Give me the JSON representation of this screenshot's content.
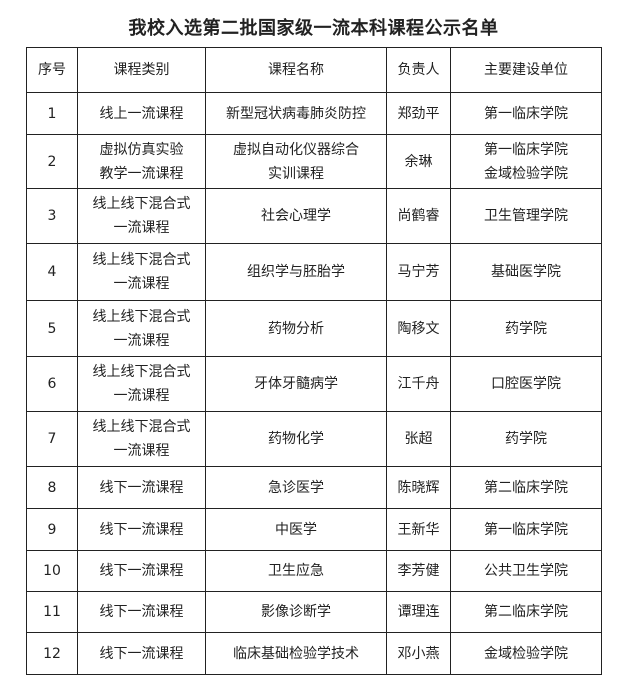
{
  "title": "我校入选第二批国家级一流本科课程公示名单",
  "headers": [
    "序号",
    "课程类别",
    "课程名称",
    "负责人",
    "主要建设单位"
  ],
  "rows": [
    [
      "1",
      "线上一流课程",
      "新型冠状病毒肺炎防控",
      "郑劲平",
      "第一临床学院"
    ],
    [
      "2",
      "虚拟仿真实验\n教学一流课程",
      "虚拟自动化仪器综合\n实训课程",
      "余琳",
      "第一临床学院\n金域检验学院"
    ],
    [
      "3",
      "线上线下混合式\n一流课程",
      "社会心理学",
      "尚鹤睿",
      "卫生管理学院"
    ],
    [
      "4",
      "线上线下混合式\n一流课程",
      "组织学与胚胎学",
      "马宁芳",
      "基础医学院"
    ],
    [
      "5",
      "线上线下混合式\n一流课程",
      "药物分析",
      "陶移文",
      "药学院"
    ],
    [
      "6",
      "线上线下混合式\n一流课程",
      "牙体牙髓病学",
      "江千舟",
      "口腔医学院"
    ],
    [
      "7",
      "线上线下混合式\n一流课程",
      "药物化学",
      "张超",
      "药学院"
    ],
    [
      "8",
      "线下一流课程",
      "急诊医学",
      "陈晓辉",
      "第二临床学院"
    ],
    [
      "9",
      "线下一流课程",
      "中医学",
      "王新华",
      "第一临床学院"
    ],
    [
      "10",
      "线下一流课程",
      "卫生应急",
      "李芳健",
      "公共卫生学院"
    ],
    [
      "11",
      "线下一流课程",
      "影像诊断学",
      "谭理连",
      "第二临床学院"
    ],
    [
      "12",
      "线下一流课程",
      "临床基础检验学技术",
      "邓小燕",
      "金域检验学院"
    ]
  ]
}
